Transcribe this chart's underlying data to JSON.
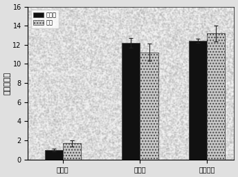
{
  "categories": [
    "对照组",
    "盐胁迫",
    "干旱胁迫"
  ],
  "series": [
    {
      "label": "转空载",
      "color": "#111111",
      "hatch": "",
      "values": [
        1.0,
        12.2,
        12.4
      ],
      "errors": [
        0.12,
        0.5,
        0.22
      ]
    },
    {
      "label": "泽苗",
      "color": "#c8c8c8",
      "hatch": "....",
      "values": [
        1.7,
        11.2,
        13.2
      ],
      "errors": [
        0.32,
        0.9,
        0.85
      ]
    }
  ],
  "ylabel": "相对表达量",
  "ylim": [
    0,
    16
  ],
  "yticks": [
    0,
    2,
    4,
    6,
    8,
    10,
    12,
    14,
    16
  ],
  "bar_width": 0.35,
  "group_positions": [
    0.5,
    2.0,
    3.3
  ],
  "background_color": "#f0f0f0",
  "figure_background": "#e0e0e0",
  "legend_loc": "upper left",
  "tick_fontsize": 7,
  "label_fontsize": 8
}
